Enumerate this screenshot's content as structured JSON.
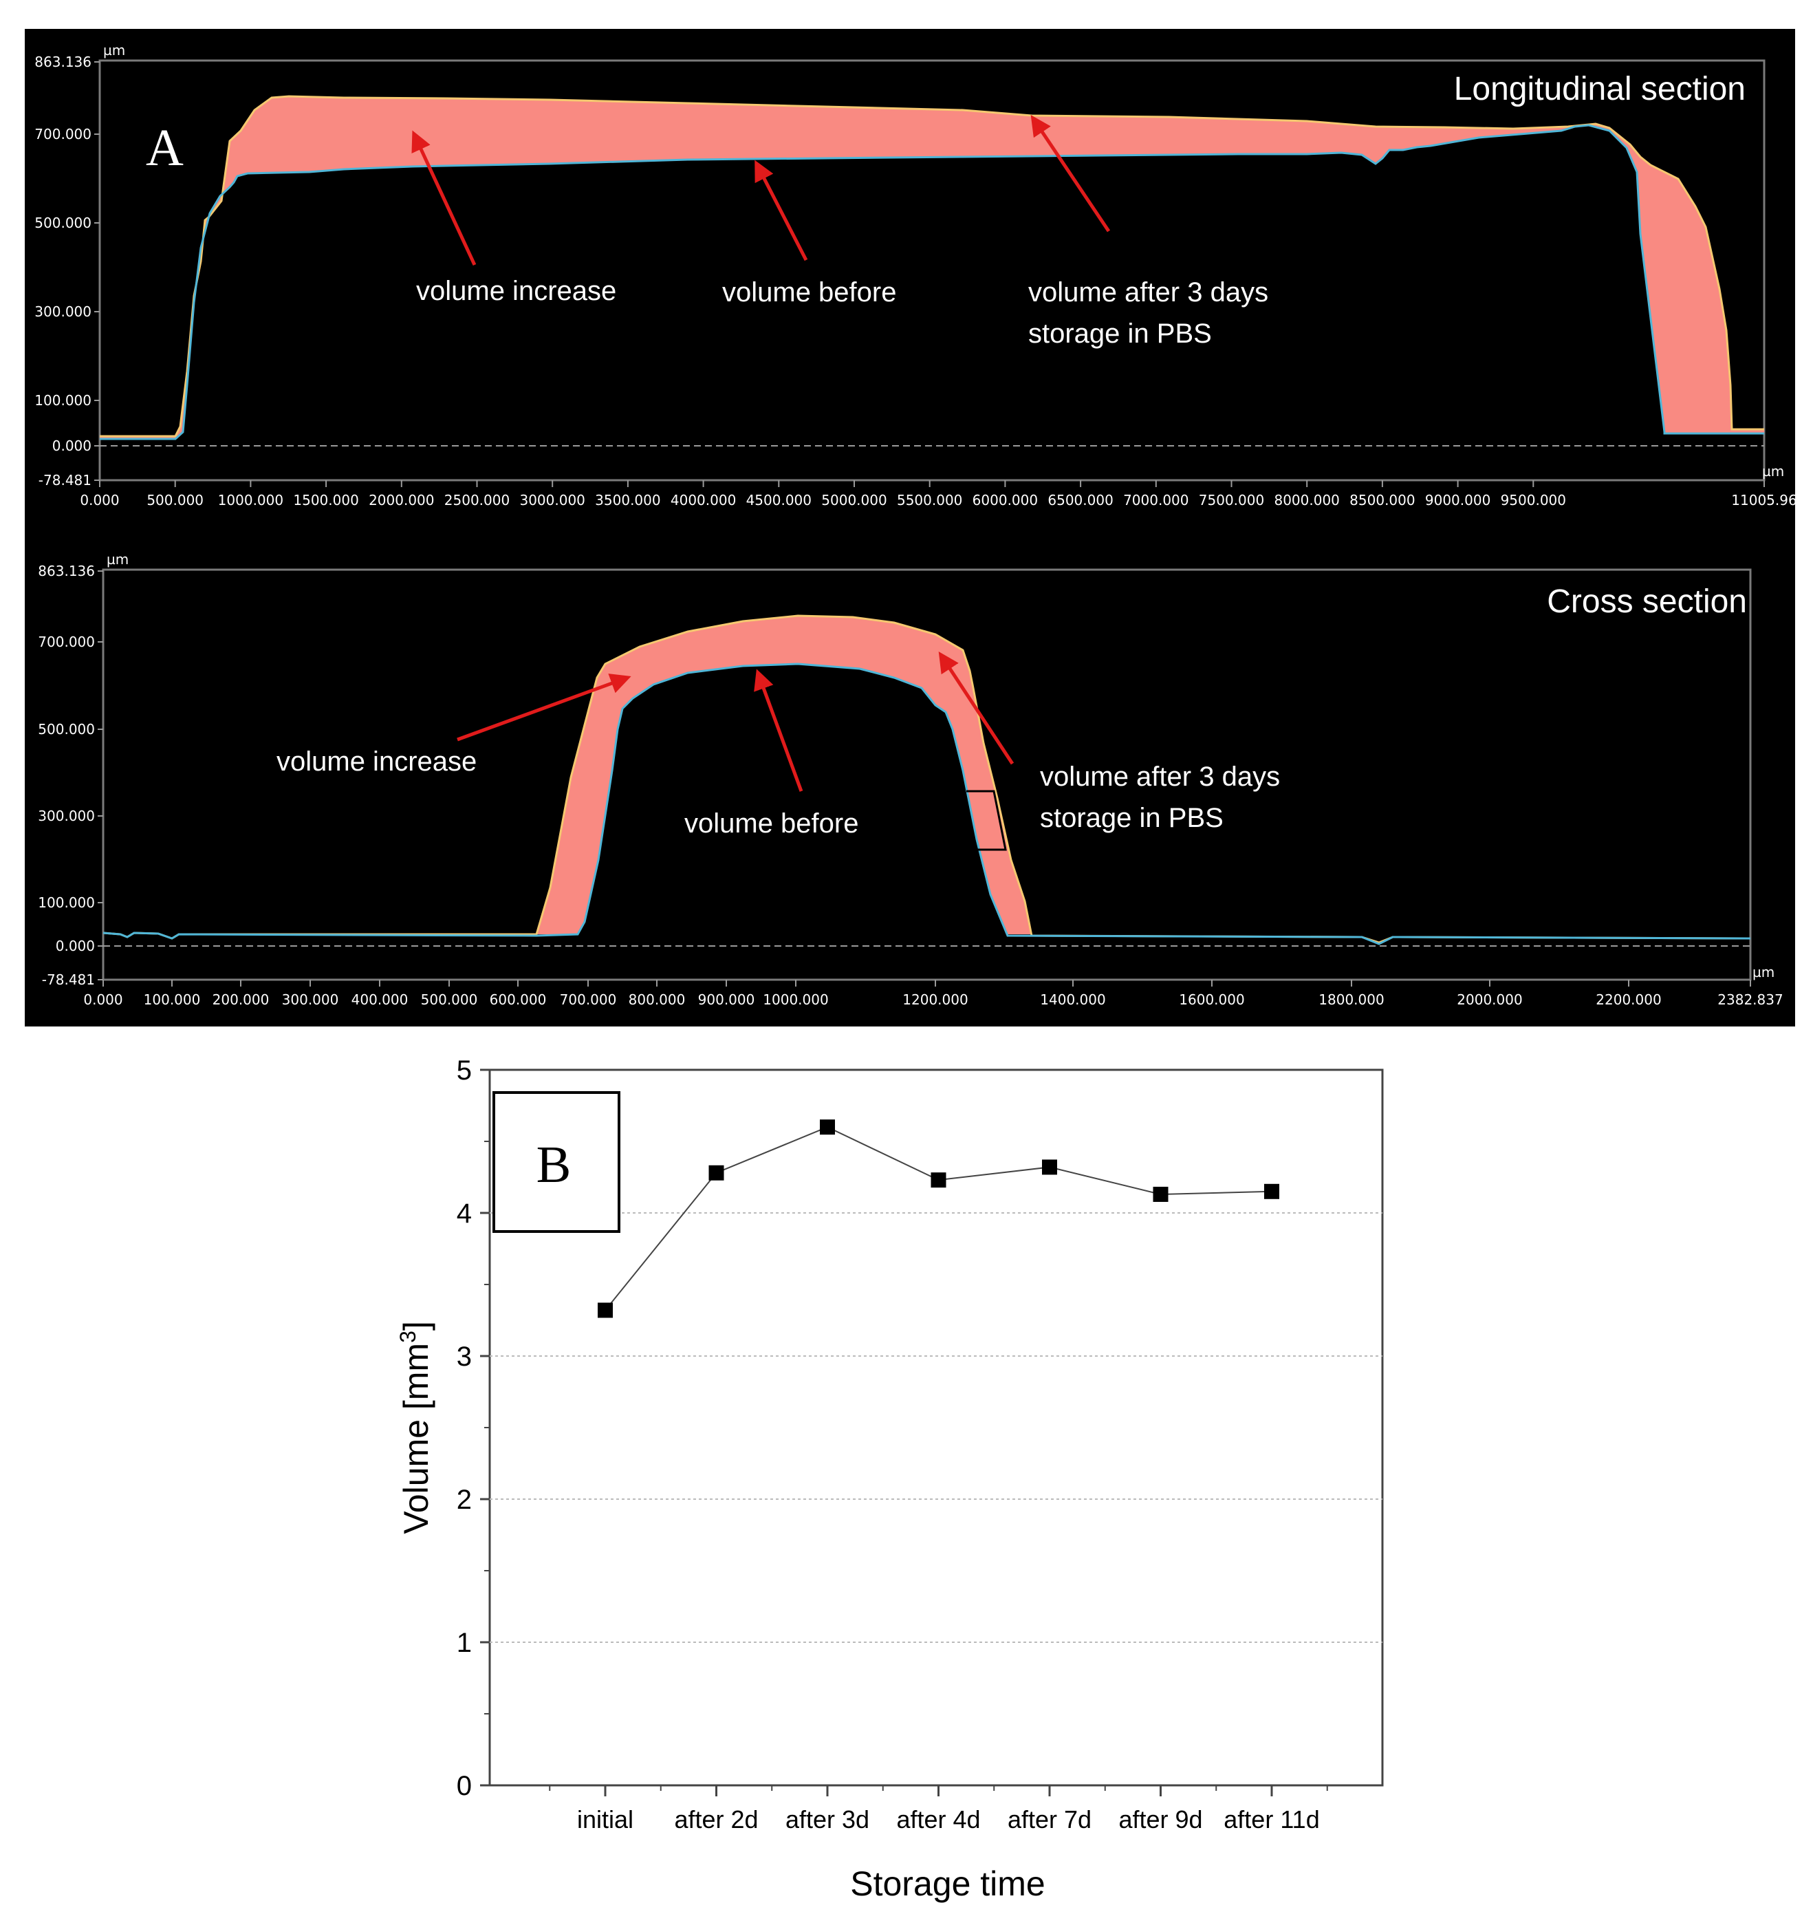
{
  "panel_a": {
    "letter": "A",
    "unit": "µm",
    "longitudinal": {
      "title": "Longitudinal section",
      "y_ticks": [
        "863.136",
        "700.000",
        "500.000",
        "300.000",
        "100.000",
        "0.000",
        "-78.481"
      ],
      "x_ticks": [
        "0.000",
        "500.000",
        "1000.000",
        "1500.000",
        "2000.000",
        "2500.000",
        "3000.000",
        "3500.000",
        "4000.000",
        "4500.000",
        "5000.000",
        "5500.000",
        "6000.000",
        "6500.000",
        "7000.000",
        "7500.000",
        "8000.000",
        "8500.000",
        "9000.000",
        "9500.000",
        "11005.96"
      ],
      "annotations": [
        {
          "text": "volume increase"
        },
        {
          "text": "volume before"
        },
        {
          "text": "volume after 3 days"
        },
        {
          "text": "storage in PBS"
        }
      ]
    },
    "cross": {
      "title": "Cross section",
      "y_ticks": [
        "863.136",
        "700.000",
        "500.000",
        "300.000",
        "100.000",
        "0.000",
        "-78.481"
      ],
      "x_ticks": [
        "0.000",
        "100.000",
        "200.000",
        "300.000",
        "400.000",
        "500.000",
        "600.000",
        "700.000",
        "800.000",
        "900.000",
        "1000.000",
        "1200.000",
        "1400.000",
        "1600.000",
        "1800.000",
        "2000.000",
        "2200.000",
        "2382.837"
      ],
      "annotations": [
        {
          "text": "volume increase"
        },
        {
          "text": "volume before"
        },
        {
          "text": "volume after 3 days"
        },
        {
          "text": "storage in PBS"
        }
      ]
    },
    "colors": {
      "background": "#000000",
      "fill": "#f98a82",
      "before_line": "#4fb6d8",
      "after_line": "#f5c870",
      "arrow": "#e11b1b"
    }
  },
  "chart_data": {
    "type": "line",
    "letter": "B",
    "categories": [
      "initial",
      "after 2d",
      "after 3d",
      "after 4d",
      "after 7d",
      "after 9d",
      "after 11d"
    ],
    "values": [
      3.32,
      4.28,
      4.6,
      4.23,
      4.32,
      4.13,
      4.15
    ],
    "ylim": [
      0,
      5
    ],
    "y_ticks": [
      "0",
      "1",
      "2",
      "3",
      "4",
      "5"
    ],
    "xlabel": "Storage time",
    "ylabel": "Volume [mm",
    "ylabel_sup": "3",
    "ylabel_end": "]",
    "grid": true,
    "marker": "square",
    "color": "#000000"
  }
}
